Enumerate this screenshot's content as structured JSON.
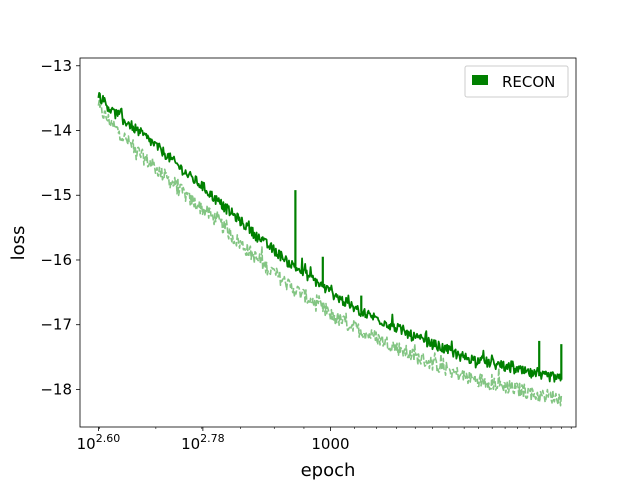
{
  "chart_data": {
    "type": "line",
    "xscale": "log",
    "xlabel": "epoch",
    "ylabel": "loss",
    "xlim": [
      370,
      2650
    ],
    "ylim": [
      -18.58,
      -12.88
    ],
    "xticks": [
      {
        "value": 398.1,
        "label": "10",
        "exp": "2.60"
      },
      {
        "value": 602.6,
        "label": "10",
        "exp": "2.78"
      },
      {
        "value": 1000,
        "label": "1000",
        "exp": ""
      }
    ],
    "yticks": [
      -13,
      -14,
      -15,
      -16,
      -17,
      -18
    ],
    "ytick_labels": [
      "−13",
      "−14",
      "−15",
      "−16",
      "−17",
      "−18"
    ],
    "legend": {
      "position": "top-right",
      "entries": [
        "RECON"
      ]
    },
    "colors": {
      "main": "#008000",
      "secondary": "#83c583"
    },
    "series": [
      {
        "name": "RECON",
        "style": "solid",
        "color": "#008000",
        "x": [
          398,
          420,
          450,
          480,
          510,
          540,
          570,
          600,
          640,
          680,
          720,
          760,
          800,
          850,
          900,
          950,
          1000,
          1100,
          1200,
          1300,
          1400,
          1500,
          1600,
          1700,
          1800,
          1900,
          2000,
          2100,
          2200,
          2300,
          2400,
          2500
        ],
        "y": [
          -13.45,
          -13.7,
          -13.9,
          -14.1,
          -14.3,
          -14.5,
          -14.7,
          -14.85,
          -15.1,
          -15.3,
          -15.5,
          -15.7,
          -15.85,
          -16.05,
          -16.2,
          -16.35,
          -16.5,
          -16.75,
          -16.9,
          -17.05,
          -17.2,
          -17.3,
          -17.4,
          -17.5,
          -17.55,
          -17.6,
          -17.65,
          -17.7,
          -17.75,
          -17.8,
          -17.8,
          -17.85
        ]
      },
      {
        "style": "dashed",
        "color": "#83c583",
        "x": [
          398,
          420,
          450,
          480,
          510,
          540,
          570,
          600,
          640,
          680,
          720,
          760,
          800,
          850,
          900,
          950,
          1000,
          1100,
          1200,
          1300,
          1400,
          1500,
          1600,
          1700,
          1800,
          1900,
          2000,
          2100,
          2200,
          2300,
          2400,
          2500
        ],
        "y": [
          -13.65,
          -13.9,
          -14.2,
          -14.45,
          -14.65,
          -14.85,
          -15.05,
          -15.2,
          -15.4,
          -15.65,
          -15.85,
          -16.05,
          -16.2,
          -16.4,
          -16.55,
          -16.7,
          -16.85,
          -17.05,
          -17.2,
          -17.35,
          -17.5,
          -17.6,
          -17.7,
          -17.8,
          -17.85,
          -17.9,
          -17.95,
          -18.0,
          -18.05,
          -18.1,
          -18.1,
          -18.15
        ]
      }
    ],
    "spikes": [
      {
        "x": 870,
        "y": -14.92
      },
      {
        "x": 970,
        "y": -15.95
      },
      {
        "x": 1130,
        "y": -16.55
      },
      {
        "x": 2290,
        "y": -17.25
      },
      {
        "x": 2500,
        "y": -17.3
      }
    ]
  }
}
